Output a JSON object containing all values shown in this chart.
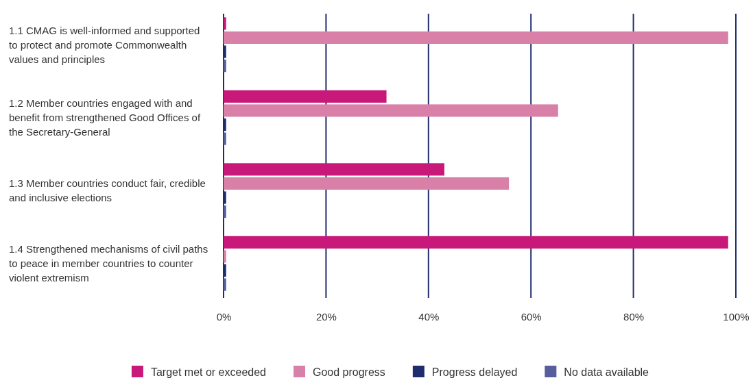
{
  "chart_data": {
    "type": "bar",
    "orientation": "horizontal",
    "categories": [
      "1.1 CMAG is well-informed and supported to protect and promote Commonwealth values and principles",
      "1.2 Member countries engaged with and benefit from strengthened Good Offices of the Secretary-General",
      "1.3 Member countries conduct fair, credible and inclusive elections",
      "1.4 Strengthened mechanisms of civil paths to peace in member countries to counter violent extremism"
    ],
    "series": [
      {
        "name": "Target met or exceeded",
        "color": "#c8197a",
        "values": [
          0.5,
          31.8,
          43.1,
          98.5
        ]
      },
      {
        "name": "Good progress",
        "color": "#d980a8",
        "values": [
          98.5,
          65.3,
          55.7,
          0.5
        ]
      },
      {
        "name": "Progress delayed",
        "color": "#1f2d6e",
        "values": [
          0.5,
          0.5,
          0.5,
          0.5
        ]
      },
      {
        "name": "No data available",
        "color": "#575e9c",
        "values": [
          0.5,
          0.5,
          0.5,
          0.5
        ]
      }
    ],
    "xlim": [
      0,
      100
    ],
    "xticks": [
      {
        "value": 0,
        "label": "0%"
      },
      {
        "value": 20,
        "label": "20%"
      },
      {
        "value": 40,
        "label": "40%"
      },
      {
        "value": 60,
        "label": "60%"
      },
      {
        "value": 80,
        "label": "80%"
      },
      {
        "value": 100,
        "label": "100%"
      }
    ],
    "grid": "x",
    "legend": "bottom"
  }
}
